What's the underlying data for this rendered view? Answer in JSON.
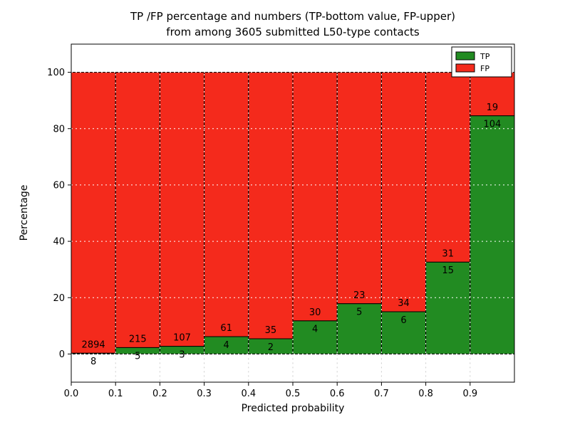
{
  "chart_data": {
    "type": "bar",
    "stacked": true,
    "title_line1": "TP /FP percentage and numbers (TP-bottom value, FP-upper)",
    "title_line2": "from among 3605 submitted L50-type contacts",
    "xlabel": "Predicted probability",
    "ylabel": "Percentage",
    "total_contacts": 3605,
    "bin_width": 0.1,
    "bin_starts": [
      0.0,
      0.1,
      0.2,
      0.3,
      0.4,
      0.5,
      0.6,
      0.7,
      0.8,
      0.9
    ],
    "series": [
      {
        "name": "TP",
        "color": "#228b22",
        "values": [
          8,
          5,
          3,
          4,
          2,
          4,
          5,
          6,
          15,
          104
        ]
      },
      {
        "name": "FP",
        "color": "#f42a1c",
        "values": [
          2894,
          215,
          107,
          61,
          35,
          30,
          23,
          34,
          31,
          19
        ]
      }
    ],
    "xlim": [
      0,
      1
    ],
    "ylim": [
      -10,
      110
    ],
    "yticks": [
      0,
      20,
      40,
      60,
      80,
      100
    ],
    "xtick_labels": [
      "0.0",
      "0.1",
      "0.2",
      "0.3",
      "0.4",
      "0.5",
      "0.6",
      "0.7",
      "0.8",
      "0.9"
    ],
    "grid": {
      "color": "#ffffff",
      "style": "dashed",
      "below_axis_color": "#cccccc"
    },
    "legend": {
      "position": "upper right",
      "entries": [
        "TP",
        "FP"
      ]
    },
    "frame_color": "#000000"
  }
}
